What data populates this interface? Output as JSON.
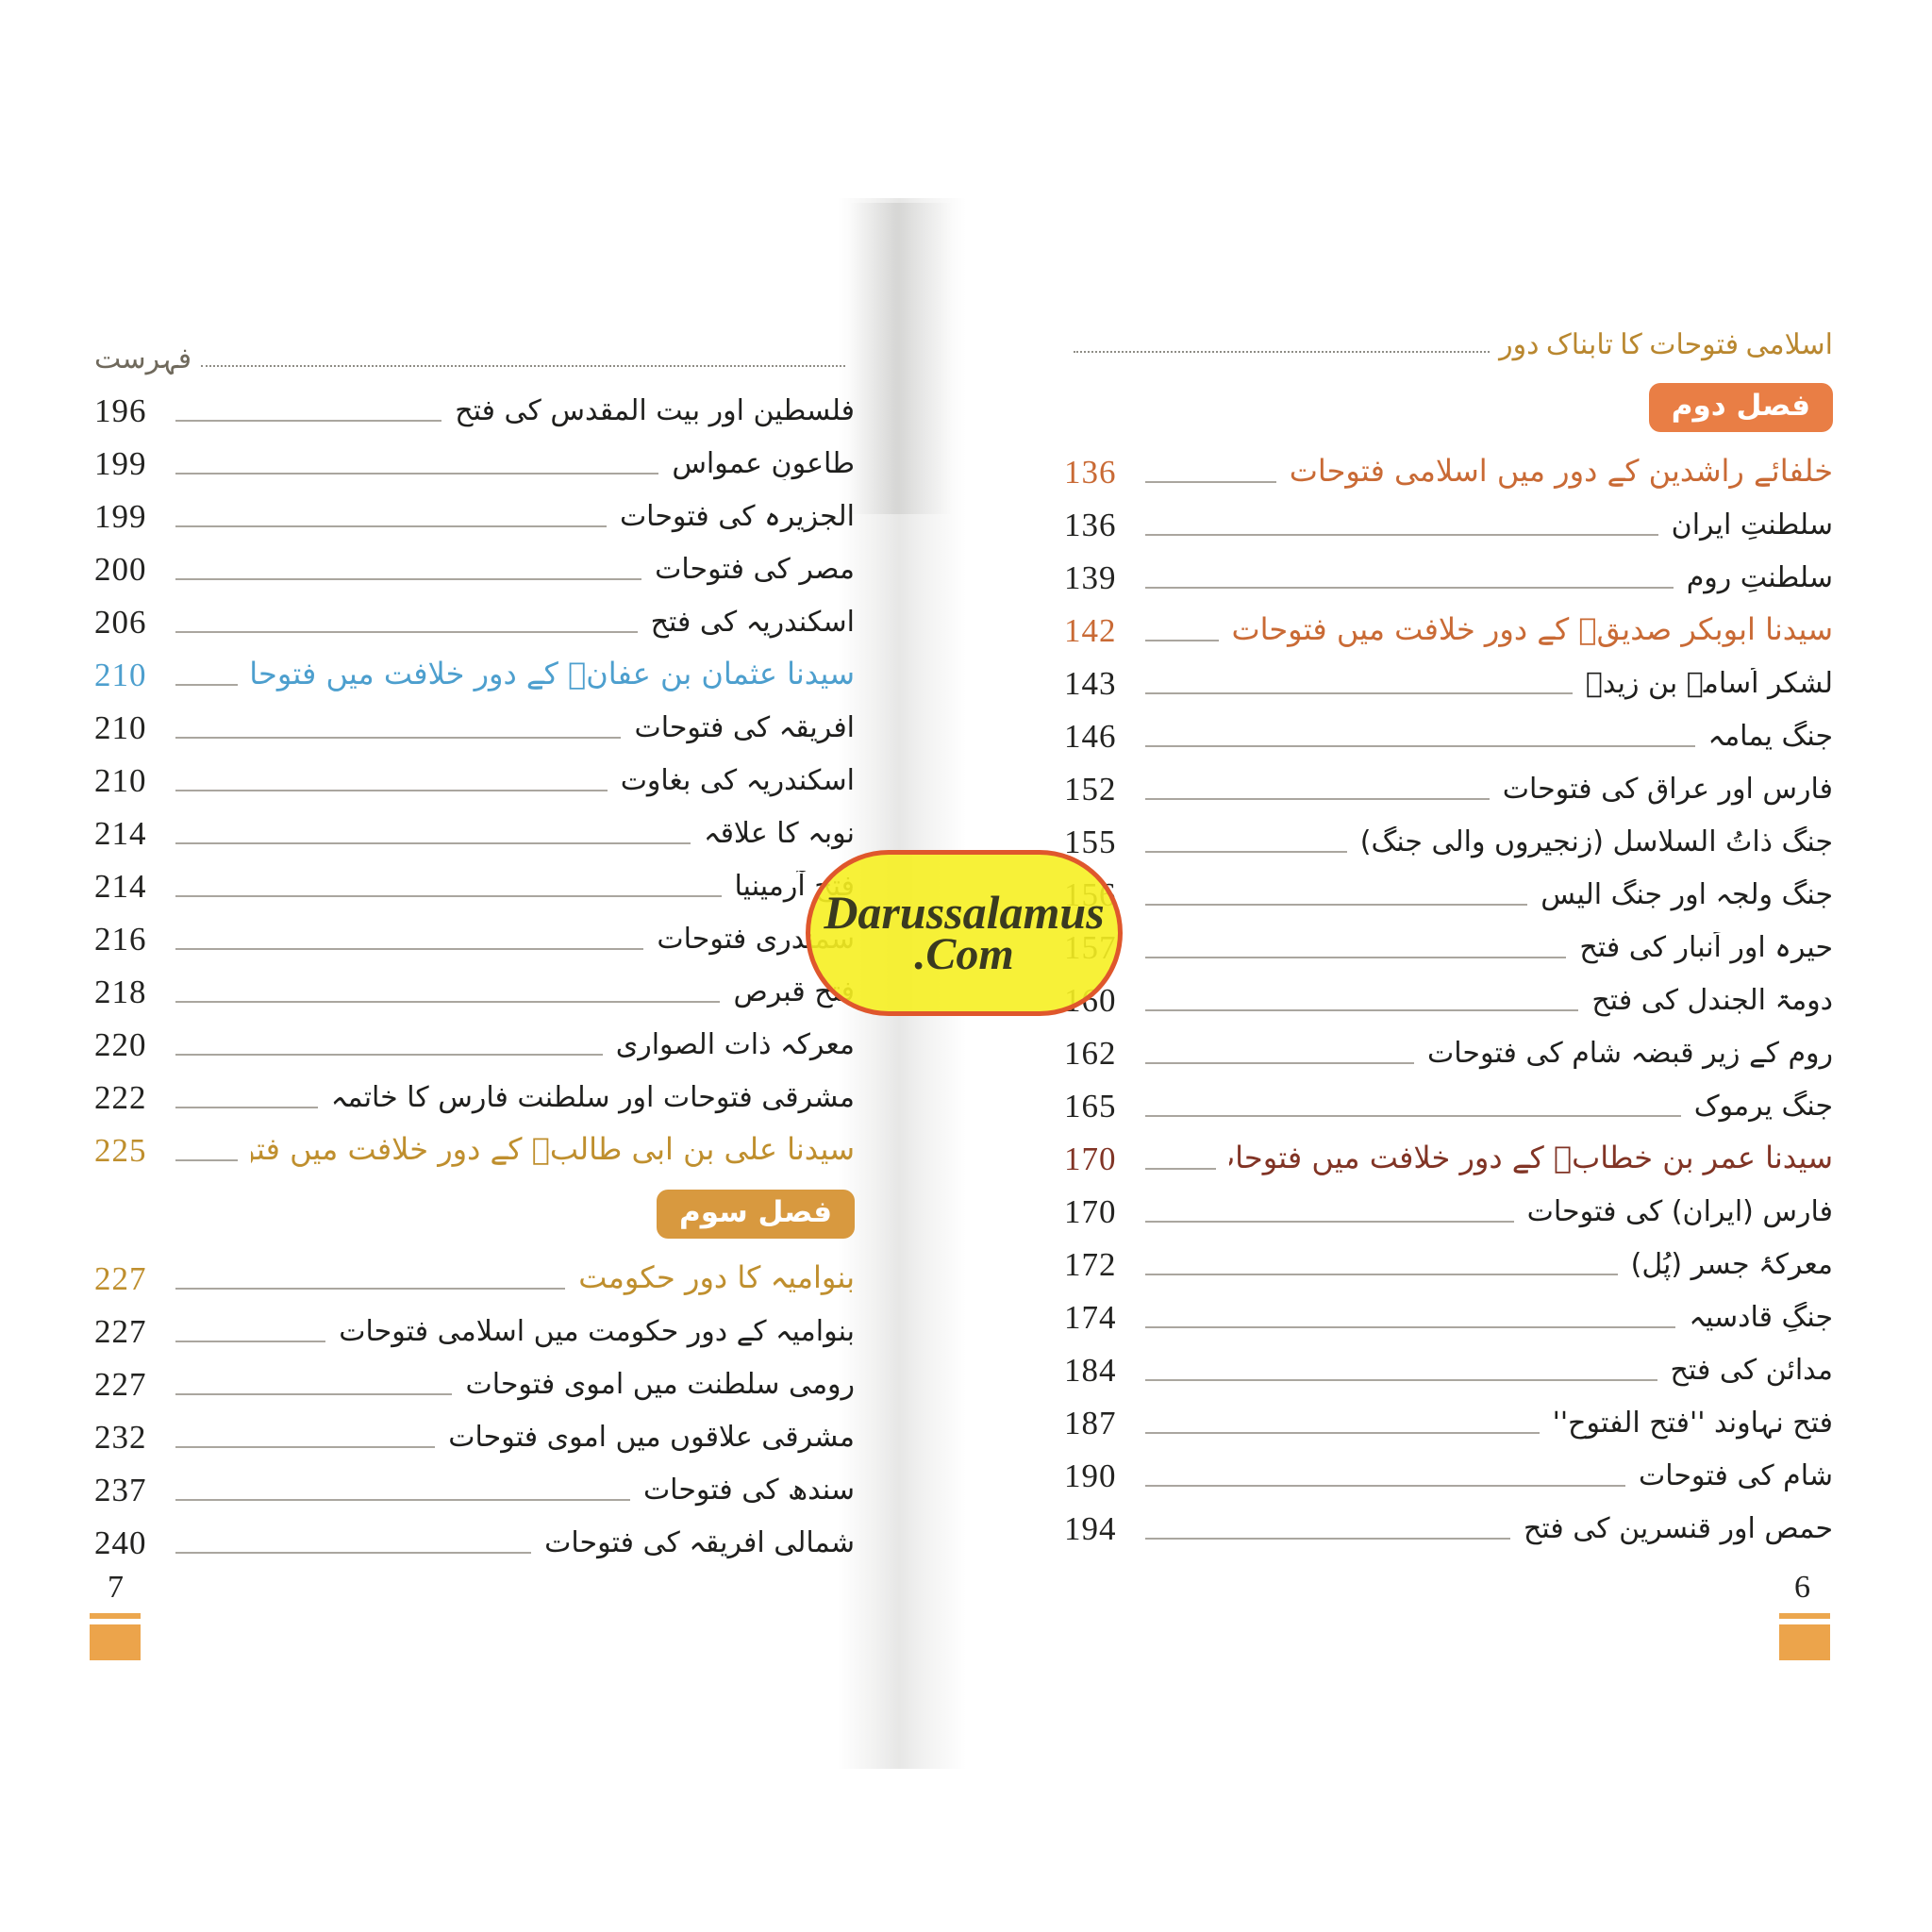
{
  "watermark": {
    "line1": "Darussalamus",
    "line2": ".Com"
  },
  "left_page": {
    "running_head": "فہرست",
    "page_number": "7",
    "rows": [
      {
        "num": "196",
        "title": "فلسطین اور بیت المقدس کی فتح",
        "style": "normal"
      },
      {
        "num": "199",
        "title": "طاعونِ عمواس",
        "style": "normal"
      },
      {
        "num": "199",
        "title": "الجزیرہ کی فتوحات",
        "style": "normal"
      },
      {
        "num": "200",
        "title": "مصر کی فتوحات",
        "style": "normal"
      },
      {
        "num": "206",
        "title": "اسکندریہ کی فتح",
        "style": "normal"
      },
      {
        "num": "210",
        "title": "سیدنا عثمان بن عفانؓ کے دورِ خلافت میں فتوحات",
        "style": "blue",
        "section": true
      },
      {
        "num": "210",
        "title": "افریقہ کی فتوحات",
        "style": "normal"
      },
      {
        "num": "210",
        "title": "اسکندریہ کی بغاوت",
        "style": "normal"
      },
      {
        "num": "214",
        "title": "نوبہ کا علاقہ",
        "style": "normal"
      },
      {
        "num": "214",
        "title": "فتح آرمینیا",
        "style": "normal"
      },
      {
        "num": "216",
        "title": "سمندری فتوحات",
        "style": "normal"
      },
      {
        "num": "218",
        "title": "فتح قبرص",
        "style": "normal"
      },
      {
        "num": "220",
        "title": "معرکہ ذات الصواری",
        "style": "normal"
      },
      {
        "num": "222",
        "title": "مشرقی فتوحات اور سلطنت فارس کا خاتمہ",
        "style": "normal"
      },
      {
        "num": "225",
        "title": "سیدنا علی بن ابی طالبؓ کے دورِ خلافت میں فتوحات",
        "style": "gold",
        "section": true
      },
      {
        "type": "chapter",
        "label": "فصل سوم",
        "variant": "chapter-3"
      },
      {
        "num": "227",
        "title": "بنوامیہ کا دورِ حکومت",
        "style": "gold",
        "section": true
      },
      {
        "num": "227",
        "title": "بنوامیہ کے دورِ حکومت میں اسلامی فتوحات",
        "style": "normal"
      },
      {
        "num": "227",
        "title": "رومی سلطنت میں اموی فتوحات",
        "style": "normal"
      },
      {
        "num": "232",
        "title": "مشرقی علاقوں میں اموی فتوحات",
        "style": "normal"
      },
      {
        "num": "237",
        "title": "سندھ کی فتوحات",
        "style": "normal"
      },
      {
        "num": "240",
        "title": "شمالی افریقہ کی فتوحات",
        "style": "normal"
      }
    ]
  },
  "right_page": {
    "running_head": "اسلامی فتوحات کا تابناک دور",
    "page_number": "6",
    "rows": [
      {
        "type": "chapter",
        "label": "فصل دوم",
        "variant": "chapter-2"
      },
      {
        "num": "136",
        "title": "خلفائے راشدین کے دور میں اسلامی فتوحات",
        "style": "orange",
        "section": true
      },
      {
        "num": "136",
        "title": "سلطنتِ ایران",
        "style": "normal"
      },
      {
        "num": "139",
        "title": "سلطنتِ روم",
        "style": "normal"
      },
      {
        "num": "142",
        "title": "سیدنا ابوبکر صدیقؓ کے دورِ خلافت میں فتوحات",
        "style": "orange",
        "section": true
      },
      {
        "num": "143",
        "title": "لشکر اُسامہ بن زیدؓ",
        "style": "normal"
      },
      {
        "num": "146",
        "title": "جنگ یمامہ",
        "style": "normal"
      },
      {
        "num": "152",
        "title": "فارس اور عراق کی فتوحات",
        "style": "normal"
      },
      {
        "num": "155",
        "title": "جنگ ذاتُ السلاسل (زنجیروں والی جنگ)",
        "style": "normal"
      },
      {
        "num": "156",
        "title": "جنگ ولجہ اور جنگ الیس",
        "style": "normal"
      },
      {
        "num": "157",
        "title": "حیرہ اور اَنبار کی فتح",
        "style": "normal"
      },
      {
        "num": "160",
        "title": "دومۃ الجندل کی فتح",
        "style": "normal"
      },
      {
        "num": "162",
        "title": "روم کے زیرِ قبضہ شام کی فتوحات",
        "style": "normal"
      },
      {
        "num": "165",
        "title": "جنگ یرموک",
        "style": "normal"
      },
      {
        "num": "170",
        "title": "سیدنا عمر بن خطابؓ کے دورِ خلافت میں فتوحات",
        "style": "maroon",
        "section": true
      },
      {
        "num": "170",
        "title": "فارس (ایران) کی فتوحات",
        "style": "normal"
      },
      {
        "num": "172",
        "title": "معرکۂ جسر (پُل)",
        "style": "normal"
      },
      {
        "num": "174",
        "title": "جنگِ قادسیہ",
        "style": "normal"
      },
      {
        "num": "184",
        "title": "مدائن کی فتح",
        "style": "normal"
      },
      {
        "num": "187",
        "title": "فتح نہاوند ''فتح الفتوح''",
        "style": "normal"
      },
      {
        "num": "190",
        "title": "شام کی فتوحات",
        "style": "normal"
      },
      {
        "num": "194",
        "title": "حمص اور قنسرین کی فتح",
        "style": "normal"
      }
    ]
  },
  "colors": {
    "chapter_box_2": "#e97e45",
    "chapter_box_3": "#d8993f",
    "section_orange": "#c96a35",
    "section_maroon": "#813425",
    "section_blue": "#4d9fce",
    "section_gold": "#bf8f2e",
    "running_head_right": "#b9872f",
    "ornament_orange": "#eca44b",
    "watermark_fill": "#f6f022",
    "watermark_border": "#df572c"
  }
}
